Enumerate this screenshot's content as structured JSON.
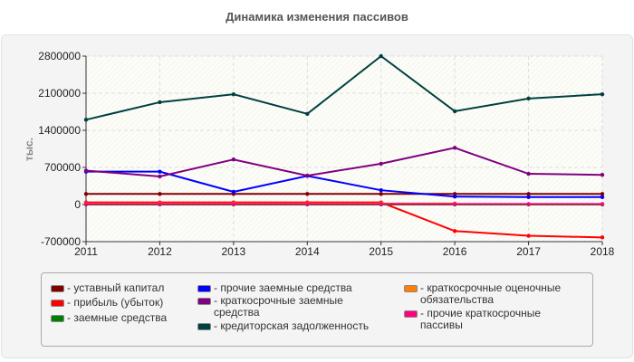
{
  "chart_data": {
    "type": "line",
    "title": "Динамика изменения пассивов",
    "ylabel": "тыс.",
    "xlabel": "",
    "x": [
      2011,
      2012,
      2013,
      2014,
      2015,
      2016,
      2017,
      2018
    ],
    "ylim": [
      -700000,
      2800000
    ],
    "yticks": [
      2800000,
      2100000,
      1400000,
      700000,
      0,
      -700000
    ],
    "grid": true,
    "legend_position": "bottom",
    "series": [
      {
        "name": "уставный капитал",
        "color": "#800000",
        "values": [
          200000,
          200000,
          200000,
          200000,
          200000,
          200000,
          200000,
          200000
        ]
      },
      {
        "name": "прибыль (убыток)",
        "color": "#ff0000",
        "values": [
          40000,
          40000,
          40000,
          40000,
          40000,
          -500000,
          -590000,
          -620000
        ]
      },
      {
        "name": "заемные средства",
        "color": "#008000",
        "values": [
          0,
          0,
          0,
          0,
          0,
          0,
          0,
          0
        ]
      },
      {
        "name": "прочие заемные средства",
        "color": "#0000ff",
        "values": [
          620000,
          620000,
          240000,
          540000,
          270000,
          150000,
          140000,
          140000
        ]
      },
      {
        "name": "краткосрочные заемные средства",
        "color": "#800080",
        "values": [
          640000,
          530000,
          850000,
          545000,
          770000,
          1070000,
          580000,
          560000
        ]
      },
      {
        "name": "кредиторская задолженность",
        "color": "#004040",
        "values": [
          1600000,
          1930000,
          2080000,
          1710000,
          2800000,
          1760000,
          2000000,
          2080000
        ]
      },
      {
        "name": "краткосрочные оценочные обязательства",
        "color": "#ff8000",
        "values": [
          20000,
          20000,
          20000,
          20000,
          20000,
          20000,
          null,
          null
        ]
      },
      {
        "name": "прочие краткосрочные пассивы",
        "color": "#ff0080",
        "values": [
          10000,
          10000,
          10000,
          10000,
          10000,
          10000,
          10000,
          10000
        ]
      }
    ]
  },
  "legend": {
    "items": [
      {
        "label": "- уставный капитал"
      },
      {
        "label": "- прибыль (убыток)"
      },
      {
        "label": "- заемные средства"
      },
      {
        "label": "- прочие заемные средства"
      },
      {
        "label": "- краткосрочные заемные средства"
      },
      {
        "label": "- кредиторская задолженность"
      },
      {
        "label": "- краткосрочные оценочные обязательства"
      },
      {
        "label": "- прочие краткосрочные пассивы"
      }
    ]
  }
}
